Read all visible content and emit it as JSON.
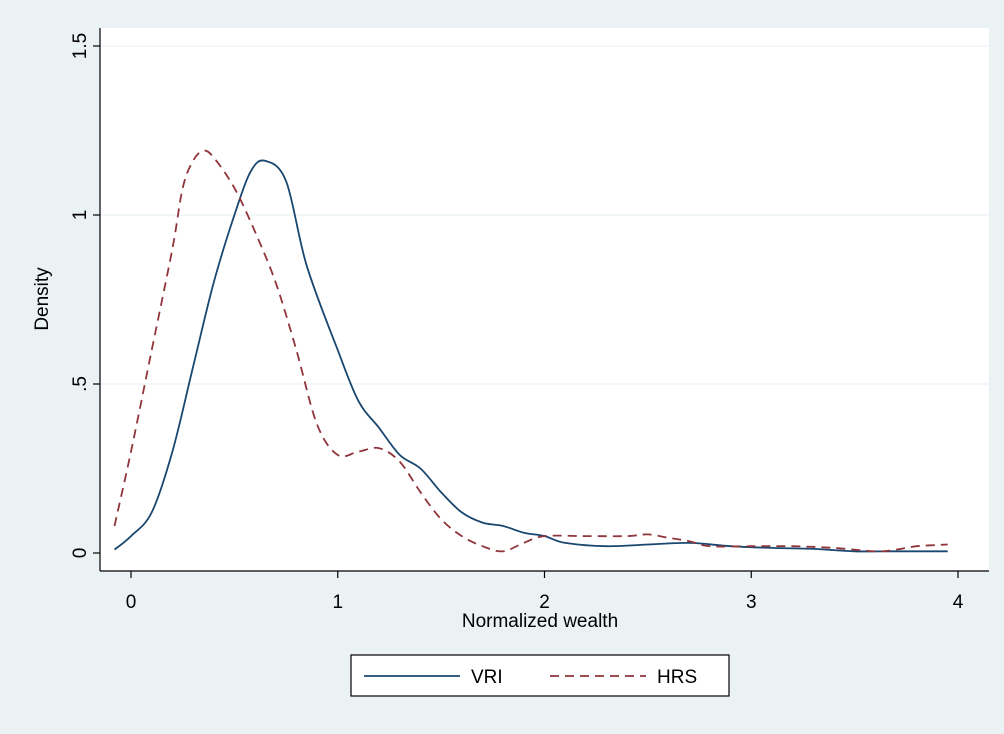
{
  "chart_data": {
    "type": "line",
    "title": "",
    "xlabel": "Normalized wealth",
    "ylabel": "Density",
    "xlim": [
      -0.15,
      4.15
    ],
    "ylim": [
      0,
      1.5
    ],
    "x_ticks": [
      0,
      1,
      2,
      3,
      4
    ],
    "x_tick_labels": [
      "0",
      "1",
      "2",
      "3",
      "4"
    ],
    "y_ticks": [
      0,
      0.5,
      1,
      1.5
    ],
    "y_tick_labels": [
      "0",
      ".5",
      "1",
      "1.5"
    ],
    "grid": "horizontal",
    "legend_position": "bottom",
    "series": [
      {
        "name": "VRI",
        "style": "solid",
        "color": "#1a476f",
        "x": [
          -0.08,
          0.0,
          0.1,
          0.2,
          0.3,
          0.4,
          0.5,
          0.58,
          0.65,
          0.75,
          0.85,
          1.0,
          1.1,
          1.2,
          1.3,
          1.4,
          1.5,
          1.6,
          1.7,
          1.8,
          1.9,
          2.0,
          2.1,
          2.3,
          2.5,
          2.7,
          2.9,
          3.1,
          3.3,
          3.5,
          3.7,
          3.95
        ],
        "y": [
          0.01,
          0.05,
          0.12,
          0.3,
          0.55,
          0.8,
          1.0,
          1.13,
          1.16,
          1.1,
          0.85,
          0.6,
          0.45,
          0.37,
          0.29,
          0.25,
          0.18,
          0.12,
          0.09,
          0.08,
          0.06,
          0.05,
          0.03,
          0.02,
          0.025,
          0.03,
          0.02,
          0.015,
          0.012,
          0.005,
          0.005,
          0.005
        ]
      },
      {
        "name": "HRS",
        "style": "dashed",
        "color": "#90353b",
        "x": [
          -0.08,
          0.0,
          0.1,
          0.2,
          0.25,
          0.3,
          0.35,
          0.4,
          0.5,
          0.6,
          0.7,
          0.8,
          0.9,
          1.0,
          1.1,
          1.2,
          1.3,
          1.4,
          1.5,
          1.6,
          1.7,
          1.8,
          1.9,
          2.0,
          2.2,
          2.4,
          2.5,
          2.6,
          2.7,
          2.8,
          3.0,
          3.2,
          3.4,
          3.6,
          3.7,
          3.8,
          3.95
        ],
        "y": [
          0.08,
          0.3,
          0.6,
          0.9,
          1.08,
          1.16,
          1.19,
          1.17,
          1.08,
          0.95,
          0.8,
          0.6,
          0.38,
          0.29,
          0.3,
          0.31,
          0.27,
          0.18,
          0.1,
          0.05,
          0.02,
          0.005,
          0.03,
          0.05,
          0.05,
          0.05,
          0.055,
          0.045,
          0.035,
          0.02,
          0.02,
          0.02,
          0.015,
          0.005,
          0.01,
          0.02,
          0.025
        ]
      }
    ]
  }
}
